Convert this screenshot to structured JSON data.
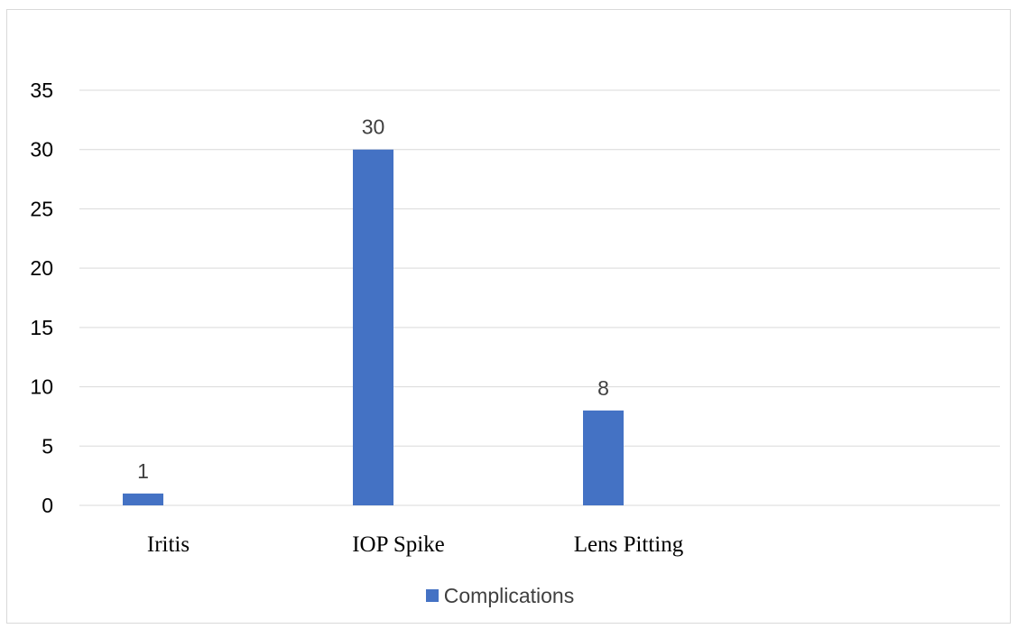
{
  "page_header_text": "",
  "colors": {
    "bar": "#4472c4",
    "gridline": "#d9d9d9",
    "tick_text": "#000000",
    "data_label": "#404040"
  },
  "chart_data": {
    "type": "bar",
    "title": "",
    "xlabel": "",
    "ylabel": "",
    "categories": [
      "Iritis",
      "IOP Spike",
      "Lens Pitting",
      ""
    ],
    "series": [
      {
        "name": "Complications",
        "values": [
          1,
          30,
          8,
          null
        ]
      }
    ],
    "ylim": [
      0,
      35
    ],
    "yticks": [
      "0",
      "5",
      "10",
      "15",
      "20",
      "25",
      "30",
      "35"
    ],
    "grid": true,
    "data_labels": [
      "1",
      "30",
      "8"
    ],
    "legend": {
      "position": "bottom",
      "labels": [
        "Complications"
      ]
    }
  }
}
